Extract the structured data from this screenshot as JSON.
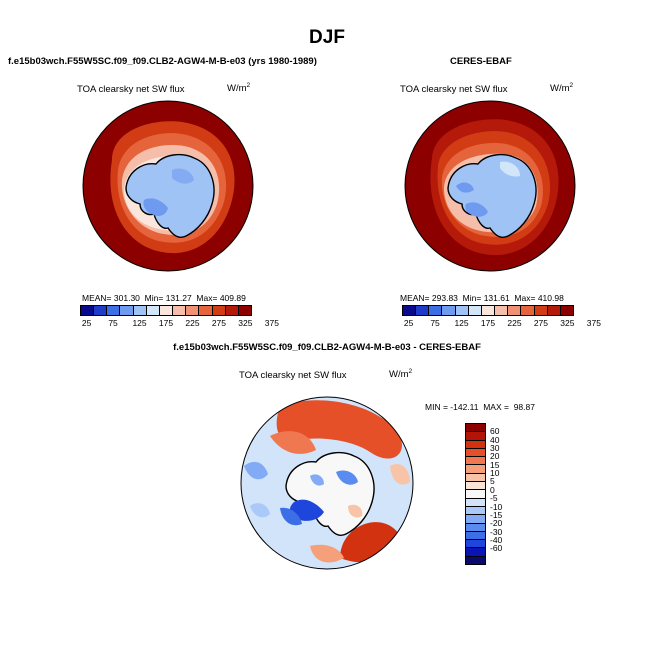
{
  "figure": {
    "title": "DJF"
  },
  "panels": {
    "model": {
      "case_title": "f.e15b03wch.F55W5SC.f09_f09.CLB2-AGW4-M-B-e03 (yrs 1980-1989)",
      "variable": "TOA clearsky net SW flux",
      "units_base": "W/m",
      "units_exp": "2",
      "mean_label": "MEAN=",
      "mean": "301.30",
      "min_label": "Min=",
      "min": "131.27",
      "max_label": "Max=",
      "max": "409.89"
    },
    "obs": {
      "case_title": "CERES-EBAF",
      "variable": "TOA clearsky net SW flux",
      "units_base": "W/m",
      "units_exp": "2",
      "mean_label": "MEAN=",
      "mean": "293.83",
      "min_label": "Min=",
      "min": "131.61",
      "max_label": "Max=",
      "max": "410.98"
    },
    "diff": {
      "case_title": "f.e15b03wch.F55W5SC.f09_f09.CLB2-AGW4-M-B-e03 - CERES-EBAF",
      "variable": "TOA clearsky net SW flux",
      "units_base": "W/m",
      "units_exp": "2",
      "min_label": "MIN =",
      "min": "-142.11",
      "max_label": "MAX =",
      "max": "98.87"
    }
  },
  "colorbar_abs": {
    "colors": [
      "#0a0a8c",
      "#1e3cc8",
      "#3c6ee6",
      "#6e9bf0",
      "#a0c3f5",
      "#d2e6fa",
      "#fae6dc",
      "#f5beaa",
      "#f09173",
      "#e6643c",
      "#d23c14",
      "#b4190a",
      "#8c0000"
    ],
    "labels": [
      "25",
      "75",
      "125",
      "175",
      "225",
      "275",
      "325",
      "375"
    ]
  },
  "colorbar_diff": {
    "colors": [
      "#0a0a6e",
      "#0a14b4",
      "#1e46dc",
      "#3c6ee6",
      "#5a8cf0",
      "#82aaf5",
      "#aac8f8",
      "#d2e4fa",
      "#f8f8f8",
      "#fae4d6",
      "#f8c4a8",
      "#f5a07a",
      "#f07850",
      "#e65028",
      "#d2320f",
      "#b41405",
      "#8c0000"
    ],
    "labels": [
      "60",
      "40",
      "30",
      "20",
      "15",
      "10",
      "5",
      "0",
      "-5",
      "-10",
      "-15",
      "-20",
      "-30",
      "-40",
      "-60"
    ]
  },
  "chart_data": [
    {
      "type": "heatmap",
      "projection": "south-polar-stereographic",
      "title": "f.e15b03wch.F55W5SC.f09_f09.CLB2-AGW4-M-B-e03 (yrs 1980-1989)",
      "field": "TOA clearsky net SW flux",
      "units": "W/m2",
      "mean": 301.3,
      "min": 131.27,
      "max": 409.89,
      "contour_levels": [
        25,
        75,
        125,
        175,
        225,
        275,
        325,
        375
      ]
    },
    {
      "type": "heatmap",
      "projection": "south-polar-stereographic",
      "title": "CERES-EBAF",
      "field": "TOA clearsky net SW flux",
      "units": "W/m2",
      "mean": 293.83,
      "min": 131.61,
      "max": 410.98,
      "contour_levels": [
        25,
        75,
        125,
        175,
        225,
        275,
        325,
        375
      ]
    },
    {
      "type": "heatmap",
      "projection": "south-polar-stereographic",
      "title": "f.e15b03wch.F55W5SC.f09_f09.CLB2-AGW4-M-B-e03 - CERES-EBAF",
      "field": "TOA clearsky net SW flux",
      "units": "W/m2",
      "min": -142.11,
      "max": 98.87,
      "contour_levels": [
        -60,
        -40,
        -30,
        -20,
        -15,
        -10,
        -5,
        0,
        5,
        10,
        15,
        20,
        30,
        40,
        60
      ]
    }
  ]
}
